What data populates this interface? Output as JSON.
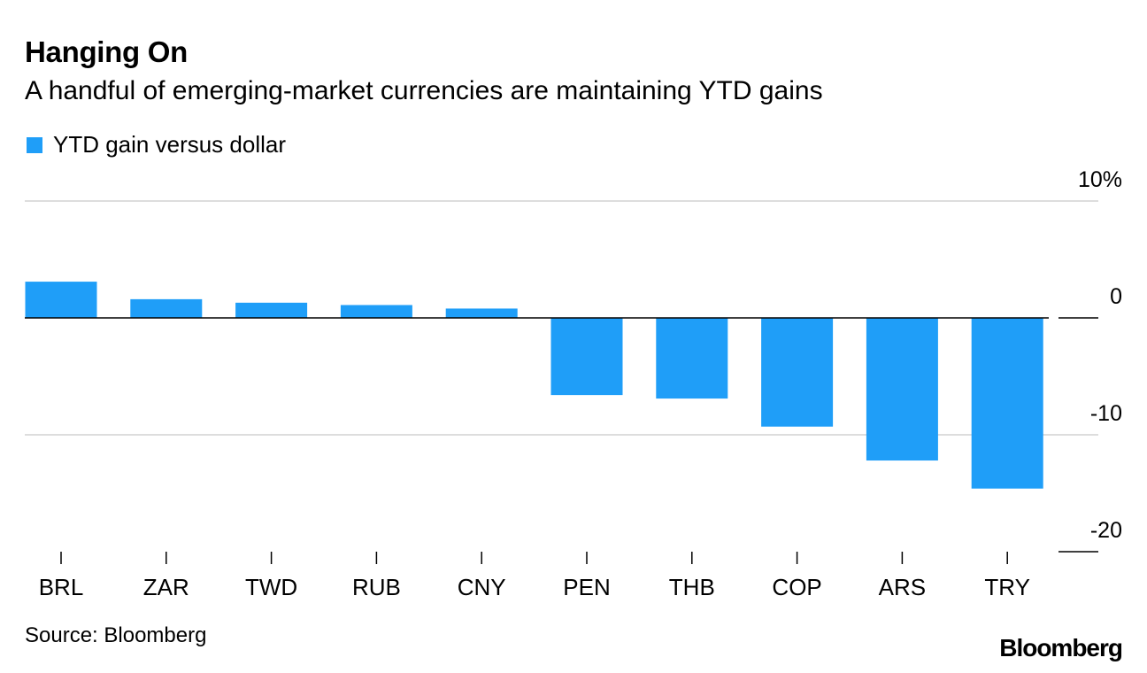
{
  "header": {
    "title": "Hanging On",
    "subtitle": "A handful of emerging-market currencies are maintaining YTD gains"
  },
  "footer": {
    "source": "Source: Bloomberg",
    "brand": "Bloomberg"
  },
  "colors": {
    "bar": "#1f9ef8",
    "grid": "#dddddd",
    "axis": "#000000"
  },
  "chart_data": {
    "type": "bar",
    "title": "Hanging On",
    "subtitle": "A handful of emerging-market currencies are maintaining YTD gains",
    "xlabel": "",
    "ylabel": "",
    "ylim": [
      -20,
      10
    ],
    "yticks": [
      {
        "value": 10,
        "label": "10%"
      },
      {
        "value": 0,
        "label": "0"
      },
      {
        "value": -10,
        "label": "-10"
      },
      {
        "value": -20,
        "label": "-20"
      }
    ],
    "grid": true,
    "legend": {
      "position": "top-left",
      "entries": [
        "YTD gain versus dollar"
      ]
    },
    "categories": [
      "BRL",
      "ZAR",
      "TWD",
      "RUB",
      "CNY",
      "PEN",
      "THB",
      "COP",
      "ARS",
      "TRY"
    ],
    "series": [
      {
        "name": "YTD gain versus dollar",
        "values": [
          3.1,
          1.6,
          1.3,
          1.1,
          0.8,
          -6.6,
          -6.9,
          -9.3,
          -12.2,
          -14.6
        ]
      }
    ]
  }
}
